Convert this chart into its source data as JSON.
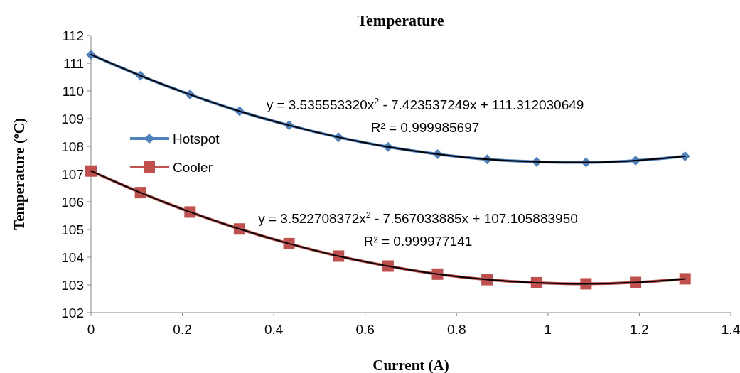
{
  "chart_data": {
    "type": "line",
    "title": "Temperature",
    "xlabel": "Current (A)",
    "ylabel": "Temperature ($^{o}$C)",
    "x": [
      0,
      0.1083,
      0.2167,
      0.325,
      0.4333,
      0.5417,
      0.65,
      0.7583,
      0.8667,
      0.975,
      1.0833,
      1.1917,
      1.3
    ],
    "series": [
      {
        "name": "Hotspot",
        "color": "#4f81bd",
        "marker": "diamond",
        "values": [
          111.31,
          110.55,
          109.87,
          109.27,
          108.76,
          108.33,
          107.98,
          107.72,
          107.53,
          107.44,
          107.42,
          107.49,
          107.64
        ]
      },
      {
        "name": "Cooler",
        "color": "#c0504d",
        "marker": "square",
        "values": [
          107.11,
          106.33,
          105.63,
          105.02,
          104.49,
          104.04,
          103.68,
          103.39,
          103.19,
          103.08,
          103.04,
          103.09,
          103.22
        ]
      },
      {
        "type": "line",
        "color": "#000000",
        "marker": "none",
        "values": [
          111.31,
          110.55,
          109.87,
          109.27,
          108.76,
          108.33,
          107.98,
          107.72,
          107.53,
          107.44,
          107.42,
          107.49,
          107.64
        ]
      },
      {
        "type": "line",
        "color": "#000000",
        "marker": "none",
        "values": [
          107.11,
          106.33,
          105.63,
          105.02,
          104.49,
          104.04,
          103.68,
          103.39,
          103.19,
          103.08,
          103.04,
          103.09,
          103.22
        ]
      }
    ],
    "xlim": [
      0,
      1.4
    ],
    "xticks": [
      0,
      0.2,
      0.4,
      0.6,
      0.8,
      1,
      1.2,
      1.4
    ],
    "ylim": [
      102,
      112
    ],
    "yticks": [
      102,
      103,
      104,
      105,
      106,
      107,
      108,
      109,
      110,
      111,
      112
    ],
    "grid": false,
    "legend": "left",
    "annotations": [
      "y = 3.535553320x$^{2}$ - 7.423537249x + 111.312030649",
      "R² = 0.999985697",
      "y = 3.522708372x$^{2}$ - 7.567033885x + 107.105883950",
      "R² = 0.999977141"
    ]
  }
}
